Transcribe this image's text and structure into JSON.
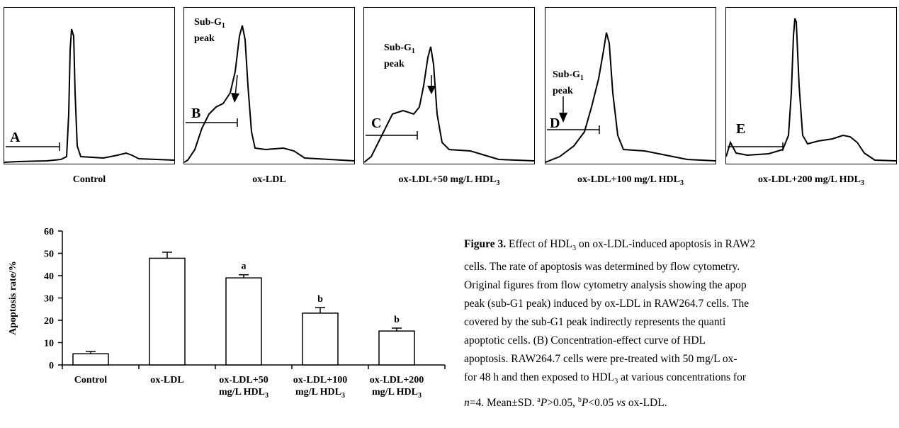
{
  "panels": [
    {
      "id": "control",
      "label": "A",
      "caption": "Control",
      "caption_sub": "",
      "subg": false
    },
    {
      "id": "oxldl",
      "label": "B",
      "caption": "ox-LDL",
      "caption_sub": "",
      "subg": true
    },
    {
      "id": "hdl50",
      "label": "C",
      "caption": "ox-LDL+50 mg/L HDL",
      "caption_sub": "3",
      "subg": true
    },
    {
      "id": "hdl100",
      "label": "D",
      "caption": "ox-LDL+100 mg/L HDL",
      "caption_sub": "3",
      "subg": true
    },
    {
      "id": "hdl200",
      "label": "E",
      "caption": "ox-LDL+200 mg/L HDL",
      "caption_sub": "3",
      "subg": false
    }
  ],
  "subg_label": {
    "line1": "Sub-G",
    "sub": "1",
    "line2": "peak"
  },
  "chart_data": {
    "type": "bar",
    "categories": [
      [
        "Control"
      ],
      [
        "ox-LDL"
      ],
      [
        "ox-LDL+50",
        "mg/L HDL3"
      ],
      [
        "ox-LDL+100",
        "mg/L HDL3"
      ],
      [
        "ox-LDL+200",
        "mg/L HDL3"
      ]
    ],
    "values": [
      5,
      47.8,
      39,
      23.2,
      15.2
    ],
    "errors": [
      1.0,
      2.7,
      1.4,
      2.5,
      1.3
    ],
    "annotations": [
      "",
      "",
      "a",
      "b",
      "b"
    ],
    "ylabel": "Apoptosis rate/%",
    "ylim": [
      0,
      60
    ],
    "yticks": [
      0,
      10,
      20,
      30,
      40,
      50,
      60
    ],
    "grid": false
  },
  "figure_text": {
    "title_bold": "Figure 3.",
    "line1": " Effect of HDL",
    "line1_sub": "3",
    "line1_end": " on ox-LDL-induced apoptosis in RAW2",
    "line2": "cells. The rate of apoptosis was determined by flow cytometry.",
    "line3": "Original figures from flow cytometry analysis showing the apop",
    "line4": "peak (sub-G1 peak) induced by ox-LDL in RAW264.7 cells. The",
    "line5": "covered by the sub-G1 peak indirectly represents the quanti",
    "line6": "apoptotic cells. (B) Concentration-effect curve of HDL",
    "line7": "apoptosis. RAW264.7 cells were pre-treated with 50 mg/L ox-",
    "line8a": "for 48 h and then exposed to HDL",
    "line8_sub": "3",
    "line8b": " at various concentrations for",
    "line9_n": "n",
    "line9a": "=4. Mean±SD. ",
    "line9_sup_a": "a",
    "line9_p1": "P",
    "line9b": ">0.05, ",
    "line9_sup_b": "b",
    "line9_p2": "P",
    "line9c": "<0.05 ",
    "line9_vs": "vs",
    "line9d": " ox-LDL."
  }
}
